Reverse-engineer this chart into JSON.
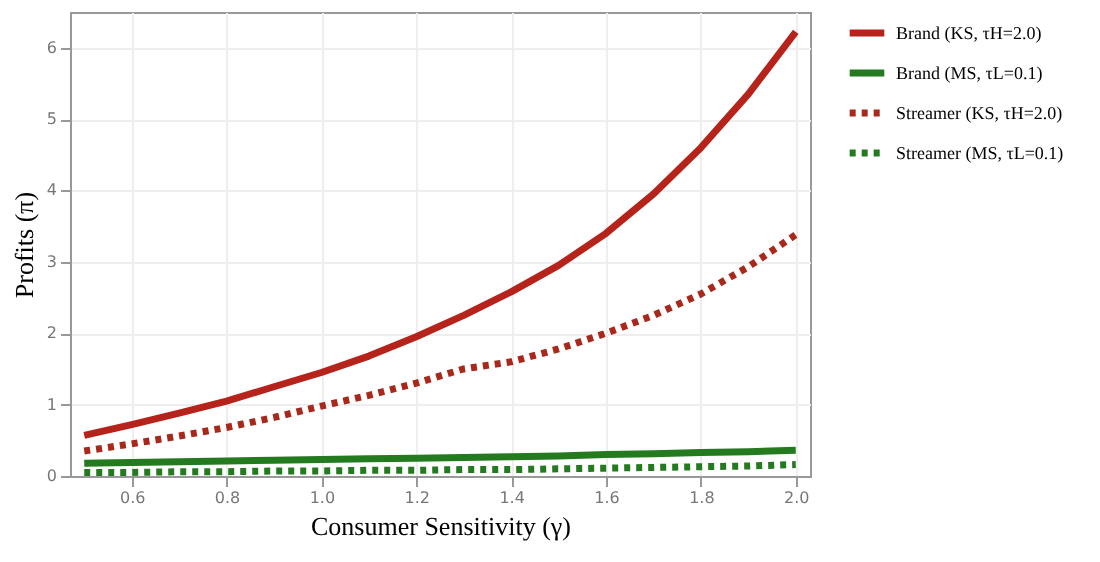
{
  "chart_data": {
    "type": "line",
    "xlabel": "Consumer Sensitivity (γ)",
    "ylabel": "Profits (π)",
    "x": [
      0.5,
      0.6,
      0.7,
      0.8,
      0.9,
      1.0,
      1.1,
      1.2,
      1.3,
      1.4,
      1.5,
      1.6,
      1.7,
      1.8,
      1.9,
      2.0
    ],
    "series": [
      {
        "name": "Brand (KS, τH=2.0)",
        "color": "#b5231b",
        "line_style": "solid",
        "values": [
          0.57,
          0.72,
          0.88,
          1.05,
          1.25,
          1.45,
          1.68,
          1.95,
          2.25,
          2.58,
          2.95,
          3.4,
          3.95,
          4.6,
          5.35,
          6.22
        ]
      },
      {
        "name": "Brand (MS, τL=0.1)",
        "color": "#237a1f",
        "line_style": "solid",
        "values": [
          0.18,
          0.19,
          0.2,
          0.21,
          0.22,
          0.23,
          0.24,
          0.25,
          0.26,
          0.27,
          0.28,
          0.3,
          0.31,
          0.33,
          0.34,
          0.36
        ]
      },
      {
        "name": "Streamer (KS, τH=2.0)",
        "color": "#a8291c",
        "line_style": "dotted",
        "values": [
          0.35,
          0.45,
          0.56,
          0.68,
          0.82,
          0.98,
          1.13,
          1.3,
          1.5,
          1.6,
          1.78,
          2.0,
          2.25,
          2.55,
          2.93,
          3.38
        ]
      },
      {
        "name": "Streamer (MS, τL=0.1)",
        "color": "#237a1f",
        "line_style": "dotted",
        "values": [
          0.05,
          0.05,
          0.06,
          0.06,
          0.07,
          0.07,
          0.08,
          0.08,
          0.09,
          0.09,
          0.1,
          0.11,
          0.12,
          0.13,
          0.14,
          0.16
        ]
      }
    ],
    "xlim": [
      0.47,
      2.03
    ],
    "ylim": [
      0,
      6.5
    ],
    "xticks": [
      0.6,
      0.8,
      {
        "value": 1,
        "label": "1.0"
      },
      1.2,
      1.4,
      1.6,
      1.8,
      {
        "value": 2,
        "label": "2.0"
      }
    ],
    "yticks": [
      0,
      1,
      2,
      3,
      4,
      5,
      6
    ],
    "grid": true,
    "legend": "right"
  }
}
